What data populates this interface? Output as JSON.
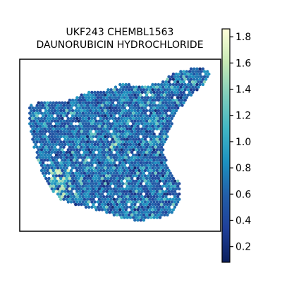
{
  "chart_data": {
    "type": "heatmap",
    "title_lines": [
      "UKF243 CHEMBL1563",
      "DAUNORUBICIN HYDROCHLORIDE"
    ],
    "xlabel": "",
    "ylabel": "",
    "grid": false,
    "colormap": "YlGnBu_r",
    "colormap_stops": [
      "#0b1f5c",
      "#1f3f99",
      "#225ea8",
      "#1d91c0",
      "#41b6c4",
      "#7fcdbb",
      "#c7e9b4",
      "#ffffd9"
    ],
    "colorbar": {
      "placement": "right",
      "range": [
        0.08,
        1.86
      ],
      "ticks": [
        0.2,
        0.4,
        0.6,
        0.8,
        1.0,
        1.2,
        1.4,
        1.6,
        1.8
      ],
      "tick_labels": [
        "0.2",
        "0.4",
        "0.6",
        "0.8",
        "1.0",
        "1.2",
        "1.4",
        "1.6",
        "1.8"
      ]
    },
    "spot_value_distribution": {
      "typical_range": [
        0.4,
        0.9
      ],
      "max_value": 1.86
    }
  }
}
